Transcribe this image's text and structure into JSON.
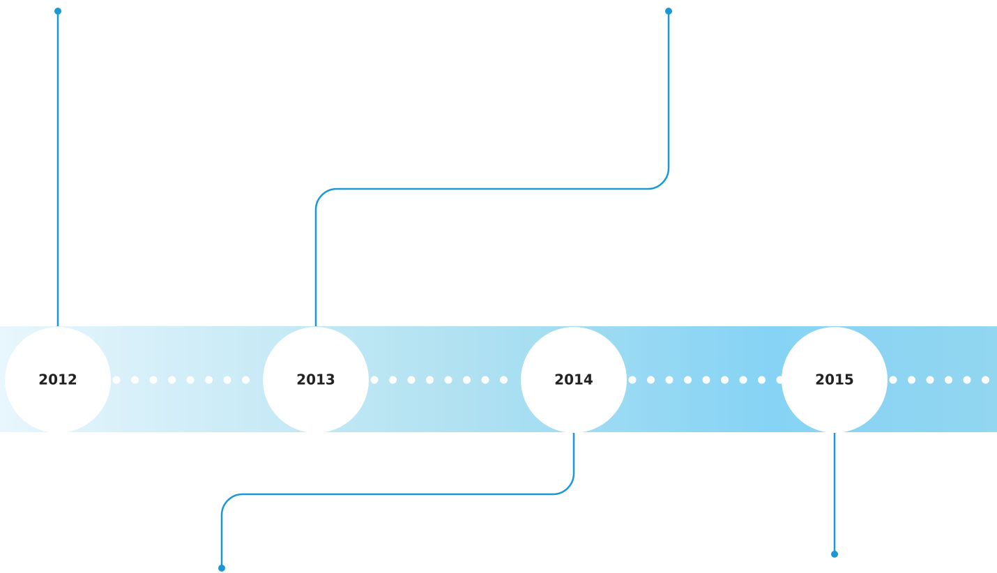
{
  "years": [
    "2012",
    "2013",
    "2014",
    "2015"
  ]
}
